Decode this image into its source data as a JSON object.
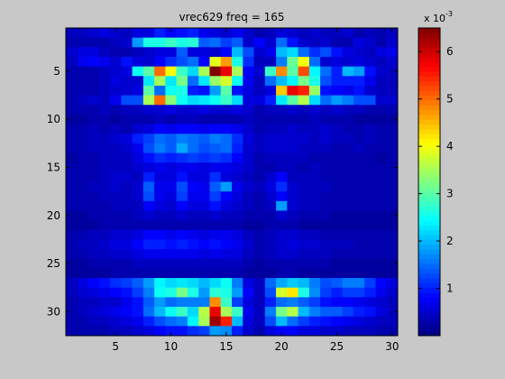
{
  "figure": {
    "background": "#c8c8c8"
  },
  "chart_data": {
    "type": "heatmap",
    "title": "vrec629 freq = 165",
    "xlabel": "",
    "ylabel": "",
    "xlim": [
      0.5,
      30.5
    ],
    "ylim": [
      32.5,
      0.5
    ],
    "x_ticks": [
      "5",
      "10",
      "15",
      "20",
      "25",
      "30"
    ],
    "y_ticks": [
      "5",
      "10",
      "15",
      "20",
      "25",
      "30"
    ],
    "grid": false,
    "colormap": "jet",
    "colorbar": {
      "range": [
        0,
        6.5
      ],
      "exponent_label": "x 10",
      "exponent": "-3",
      "ticks": [
        "1",
        "2",
        "3",
        "4",
        "5",
        "6"
      ]
    },
    "rows": [
      [
        0.4,
        0.4,
        0.5,
        0.6,
        0.5,
        0.4,
        0.6,
        0.6,
        1.0,
        0.8,
        0.9,
        1.0,
        0.7,
        0.6,
        0.5,
        0.7,
        0.5,
        0.3,
        0.4,
        0.6,
        0.5,
        0.4,
        0.5,
        0.4,
        0.4,
        0.5,
        0.3,
        0.4,
        0.3,
        0.4
      ],
      [
        0.3,
        0.3,
        0.3,
        0.3,
        0.4,
        0.5,
        1.8,
        2.6,
        2.6,
        2.8,
        2.6,
        2.7,
        1.4,
        1.5,
        1.2,
        1.4,
        0.5,
        0.8,
        0.5,
        1.5,
        0.9,
        0.5,
        0.4,
        0.5,
        0.3,
        0.3,
        0.6,
        0.5,
        0.3,
        0.5
      ],
      [
        0.5,
        0.6,
        0.6,
        0.4,
        0.3,
        0.3,
        0.4,
        0.5,
        0.6,
        0.6,
        1.4,
        0.6,
        0.6,
        0.5,
        0.8,
        2.0,
        1.3,
        0.5,
        0.7,
        2.0,
        2.2,
        1.5,
        1.1,
        1.3,
        0.9,
        0.6,
        0.5,
        0.4,
        0.6,
        0.7
      ],
      [
        0.4,
        0.7,
        0.8,
        0.7,
        0.5,
        0.9,
        0.6,
        0.5,
        0.8,
        1.1,
        1.3,
        1.5,
        0.8,
        3.9,
        4.7,
        2.6,
        1.1,
        0.4,
        0.4,
        1.6,
        3.1,
        4.0,
        1.5,
        0.5,
        0.6,
        0.5,
        0.6,
        0.5,
        0.4,
        0.5
      ],
      [
        0.3,
        0.3,
        0.3,
        0.4,
        0.5,
        0.6,
        2.5,
        3.0,
        5.0,
        4.0,
        2.8,
        2.2,
        3.5,
        6.5,
        5.8,
        3.5,
        0.8,
        0.5,
        2.8,
        4.8,
        3.0,
        5.2,
        2.4,
        1.5,
        1.0,
        2.0,
        1.8,
        0.9,
        0.5,
        0.4
      ],
      [
        0.3,
        0.3,
        0.3,
        0.4,
        0.6,
        0.5,
        0.5,
        2.3,
        3.5,
        2.3,
        3.2,
        1.5,
        2.3,
        3.4,
        3.8,
        2.5,
        0.7,
        0.4,
        1.5,
        2.0,
        2.4,
        3.2,
        2.6,
        1.3,
        1.0,
        1.0,
        1.0,
        0.7,
        0.4,
        0.4
      ],
      [
        0.3,
        0.3,
        0.3,
        0.4,
        0.5,
        0.5,
        0.6,
        3.0,
        1.5,
        2.5,
        2.6,
        1.0,
        0.9,
        1.8,
        3.0,
        0.9,
        0.6,
        0.4,
        0.6,
        4.4,
        5.8,
        5.5,
        3.4,
        0.9,
        0.8,
        0.7,
        0.9,
        0.5,
        0.4,
        0.4
      ],
      [
        0.3,
        0.4,
        0.5,
        0.4,
        0.7,
        1.3,
        1.3,
        3.5,
        5.0,
        3.3,
        2.5,
        2.2,
        2.3,
        2.5,
        2.8,
        2.2,
        0.6,
        0.6,
        1.0,
        2.3,
        3.0,
        3.6,
        2.2,
        1.5,
        1.8,
        1.6,
        1.3,
        1.3,
        0.5,
        0.5
      ],
      [
        0.3,
        0.3,
        0.3,
        0.4,
        0.3,
        0.4,
        0.4,
        0.5,
        0.5,
        0.6,
        0.5,
        0.5,
        0.6,
        0.5,
        0.5,
        0.6,
        0.5,
        0.3,
        0.4,
        0.4,
        0.5,
        0.4,
        0.5,
        0.4,
        0.5,
        0.4,
        0.4,
        0.3,
        0.3,
        0.3
      ],
      [
        0.2,
        0.2,
        0.3,
        0.3,
        0.2,
        0.3,
        0.3,
        0.3,
        0.4,
        0.3,
        0.4,
        0.4,
        0.3,
        0.3,
        0.3,
        0.3,
        0.4,
        0.3,
        0.3,
        0.3,
        0.3,
        0.3,
        0.4,
        0.3,
        0.3,
        0.3,
        0.2,
        0.2,
        0.2,
        0.2
      ],
      [
        0.3,
        0.3,
        0.4,
        0.3,
        0.4,
        0.3,
        0.5,
        0.6,
        0.8,
        0.7,
        0.8,
        0.8,
        0.7,
        0.8,
        0.8,
        0.7,
        0.5,
        0.3,
        0.4,
        0.4,
        0.5,
        0.4,
        0.4,
        0.5,
        0.4,
        0.3,
        0.3,
        0.4,
        0.3,
        0.3
      ],
      [
        0.3,
        0.3,
        0.4,
        0.4,
        0.5,
        0.6,
        1.0,
        1.2,
        1.5,
        1.4,
        1.6,
        1.5,
        1.4,
        1.6,
        1.5,
        1.1,
        0.6,
        0.4,
        0.5,
        0.5,
        0.5,
        0.5,
        0.4,
        0.5,
        0.4,
        0.4,
        0.3,
        0.4,
        0.3,
        0.3
      ],
      [
        0.3,
        0.3,
        0.4,
        0.4,
        0.4,
        0.5,
        0.7,
        1.3,
        1.6,
        1.4,
        1.9,
        1.5,
        1.3,
        1.4,
        1.5,
        1.0,
        0.5,
        0.4,
        0.5,
        0.5,
        0.5,
        0.4,
        0.4,
        0.4,
        0.3,
        0.3,
        0.4,
        0.3,
        0.3,
        0.3
      ],
      [
        0.2,
        0.3,
        0.3,
        0.4,
        0.4,
        0.4,
        0.6,
        0.9,
        1.1,
        1.0,
        1.1,
        1.2,
        1.1,
        1.2,
        1.1,
        0.8,
        0.5,
        0.3,
        0.4,
        0.4,
        0.4,
        0.4,
        0.3,
        0.3,
        0.3,
        0.3,
        0.3,
        0.3,
        0.2,
        0.3
      ],
      [
        0.3,
        0.3,
        0.3,
        0.4,
        0.4,
        0.4,
        0.5,
        0.6,
        0.7,
        0.6,
        0.7,
        0.7,
        0.6,
        0.7,
        0.7,
        0.6,
        0.5,
        0.3,
        0.3,
        0.4,
        0.4,
        0.3,
        0.4,
        0.3,
        0.3,
        0.3,
        0.3,
        0.3,
        0.3,
        0.3
      ],
      [
        0.3,
        0.3,
        0.3,
        0.4,
        0.5,
        0.5,
        0.4,
        1.0,
        0.6,
        0.6,
        0.9,
        0.6,
        0.6,
        1.1,
        0.6,
        0.5,
        0.4,
        0.3,
        0.5,
        0.8,
        0.4,
        0.4,
        0.4,
        0.3,
        0.3,
        0.3,
        0.3,
        0.3,
        0.3,
        0.3
      ],
      [
        0.3,
        0.3,
        0.4,
        0.4,
        0.5,
        0.4,
        0.5,
        1.4,
        0.7,
        0.7,
        1.3,
        0.8,
        0.7,
        1.4,
        1.8,
        0.7,
        0.5,
        0.4,
        0.6,
        1.1,
        0.5,
        0.4,
        0.4,
        0.4,
        0.3,
        0.3,
        0.3,
        0.3,
        0.3,
        0.3
      ],
      [
        0.3,
        0.3,
        0.3,
        0.4,
        0.4,
        0.4,
        0.5,
        1.3,
        0.7,
        0.6,
        1.2,
        0.7,
        0.7,
        1.2,
        0.8,
        0.6,
        0.4,
        0.3,
        0.5,
        0.8,
        0.5,
        0.4,
        0.4,
        0.3,
        0.3,
        0.3,
        0.3,
        0.3,
        0.3,
        0.3
      ],
      [
        0.3,
        0.3,
        0.3,
        0.3,
        0.4,
        0.4,
        0.4,
        0.8,
        0.6,
        0.5,
        0.8,
        0.6,
        0.6,
        0.9,
        0.6,
        0.5,
        0.4,
        0.3,
        0.4,
        1.8,
        0.5,
        0.4,
        0.4,
        0.3,
        0.3,
        0.3,
        0.3,
        0.3,
        0.3,
        0.3
      ],
      [
        0.2,
        0.2,
        0.3,
        0.3,
        0.3,
        0.3,
        0.4,
        0.5,
        0.4,
        0.4,
        0.5,
        0.4,
        0.4,
        0.5,
        0.4,
        0.4,
        0.3,
        0.3,
        0.3,
        0.5,
        0.4,
        0.3,
        0.3,
        0.3,
        0.2,
        0.2,
        0.2,
        0.2,
        0.2,
        0.2
      ],
      [
        0.2,
        0.2,
        0.2,
        0.3,
        0.3,
        0.3,
        0.3,
        0.3,
        0.3,
        0.3,
        0.3,
        0.3,
        0.3,
        0.3,
        0.3,
        0.3,
        0.2,
        0.2,
        0.3,
        0.3,
        0.3,
        0.2,
        0.2,
        0.2,
        0.2,
        0.2,
        0.2,
        0.2,
        0.2,
        0.2
      ],
      [
        0.3,
        0.3,
        0.4,
        0.4,
        0.5,
        0.5,
        0.6,
        0.8,
        0.8,
        0.7,
        0.8,
        0.7,
        0.6,
        0.7,
        0.7,
        0.6,
        0.4,
        0.3,
        0.4,
        0.5,
        0.5,
        0.4,
        0.4,
        0.3,
        0.3,
        0.3,
        0.3,
        0.3,
        0.3,
        0.3
      ],
      [
        0.3,
        0.4,
        0.4,
        0.5,
        0.6,
        0.6,
        0.8,
        1.0,
        1.0,
        0.9,
        1.0,
        0.9,
        0.8,
        0.9,
        0.8,
        0.7,
        0.5,
        0.3,
        0.4,
        0.5,
        0.6,
        0.5,
        0.5,
        0.4,
        0.4,
        0.4,
        0.3,
        0.3,
        0.3,
        0.3
      ],
      [
        0.3,
        0.3,
        0.4,
        0.4,
        0.5,
        0.5,
        0.6,
        0.7,
        0.7,
        0.7,
        0.7,
        0.7,
        0.6,
        0.7,
        0.6,
        0.6,
        0.4,
        0.3,
        0.4,
        0.5,
        0.5,
        0.4,
        0.4,
        0.4,
        0.3,
        0.3,
        0.3,
        0.3,
        0.3,
        0.3
      ],
      [
        0.2,
        0.2,
        0.3,
        0.3,
        0.3,
        0.3,
        0.4,
        0.4,
        0.4,
        0.4,
        0.4,
        0.4,
        0.4,
        0.4,
        0.4,
        0.4,
        0.3,
        0.2,
        0.3,
        0.3,
        0.3,
        0.3,
        0.3,
        0.3,
        0.2,
        0.2,
        0.2,
        0.2,
        0.2,
        0.2
      ],
      [
        0.2,
        0.2,
        0.2,
        0.2,
        0.3,
        0.3,
        0.3,
        0.3,
        0.3,
        0.3,
        0.3,
        0.3,
        0.3,
        0.3,
        0.3,
        0.3,
        0.2,
        0.2,
        0.2,
        0.3,
        0.3,
        0.2,
        0.2,
        0.2,
        0.2,
        0.2,
        0.2,
        0.2,
        0.2,
        0.2
      ],
      [
        0.4,
        0.6,
        0.8,
        0.9,
        1.1,
        1.2,
        1.4,
        1.8,
        2.4,
        2.2,
        2.3,
        2.2,
        2.0,
        2.2,
        2.5,
        1.6,
        0.6,
        0.4,
        1.5,
        1.9,
        2.1,
        2.0,
        1.6,
        1.3,
        1.4,
        1.6,
        1.6,
        1.2,
        0.8,
        0.6
      ],
      [
        0.4,
        0.5,
        0.6,
        0.7,
        0.8,
        0.9,
        1.2,
        1.6,
        2.5,
        2.6,
        3.2,
        2.6,
        1.8,
        2.7,
        2.6,
        1.8,
        0.8,
        0.4,
        1.3,
        3.8,
        4.2,
        2.6,
        1.7,
        1.2,
        1.0,
        1.2,
        1.2,
        1.0,
        0.7,
        0.5
      ],
      [
        0.3,
        0.4,
        0.4,
        0.5,
        0.5,
        0.7,
        0.9,
        1.4,
        1.8,
        1.5,
        1.6,
        1.6,
        1.6,
        4.8,
        2.8,
        1.2,
        0.6,
        0.4,
        1.0,
        1.5,
        1.6,
        1.4,
        1.2,
        0.9,
        0.8,
        0.8,
        0.7,
        0.6,
        0.5,
        0.4
      ],
      [
        0.3,
        0.4,
        0.5,
        0.6,
        0.7,
        0.8,
        0.9,
        1.5,
        2.0,
        2.5,
        2.8,
        2.2,
        3.6,
        5.8,
        3.5,
        2.8,
        0.7,
        0.4,
        1.6,
        3.2,
        3.6,
        2.0,
        1.6,
        1.4,
        1.4,
        1.2,
        1.0,
        0.9,
        0.6,
        0.4
      ],
      [
        0.3,
        0.3,
        0.4,
        0.4,
        0.5,
        0.6,
        0.7,
        1.0,
        1.3,
        1.5,
        1.6,
        2.4,
        3.5,
        6.3,
        5.5,
        2.0,
        0.6,
        0.4,
        1.3,
        2.0,
        1.5,
        1.2,
        1.0,
        0.9,
        0.8,
        0.7,
        0.6,
        0.5,
        0.4,
        0.4
      ],
      [
        0.3,
        0.3,
        0.3,
        0.3,
        0.4,
        0.4,
        0.5,
        0.6,
        0.8,
        0.9,
        0.9,
        1.1,
        1.2,
        1.8,
        1.7,
        1.0,
        0.5,
        0.3,
        0.6,
        0.8,
        0.8,
        0.6,
        0.6,
        0.5,
        0.5,
        0.4,
        0.4,
        0.4,
        0.3,
        0.3
      ]
    ]
  }
}
